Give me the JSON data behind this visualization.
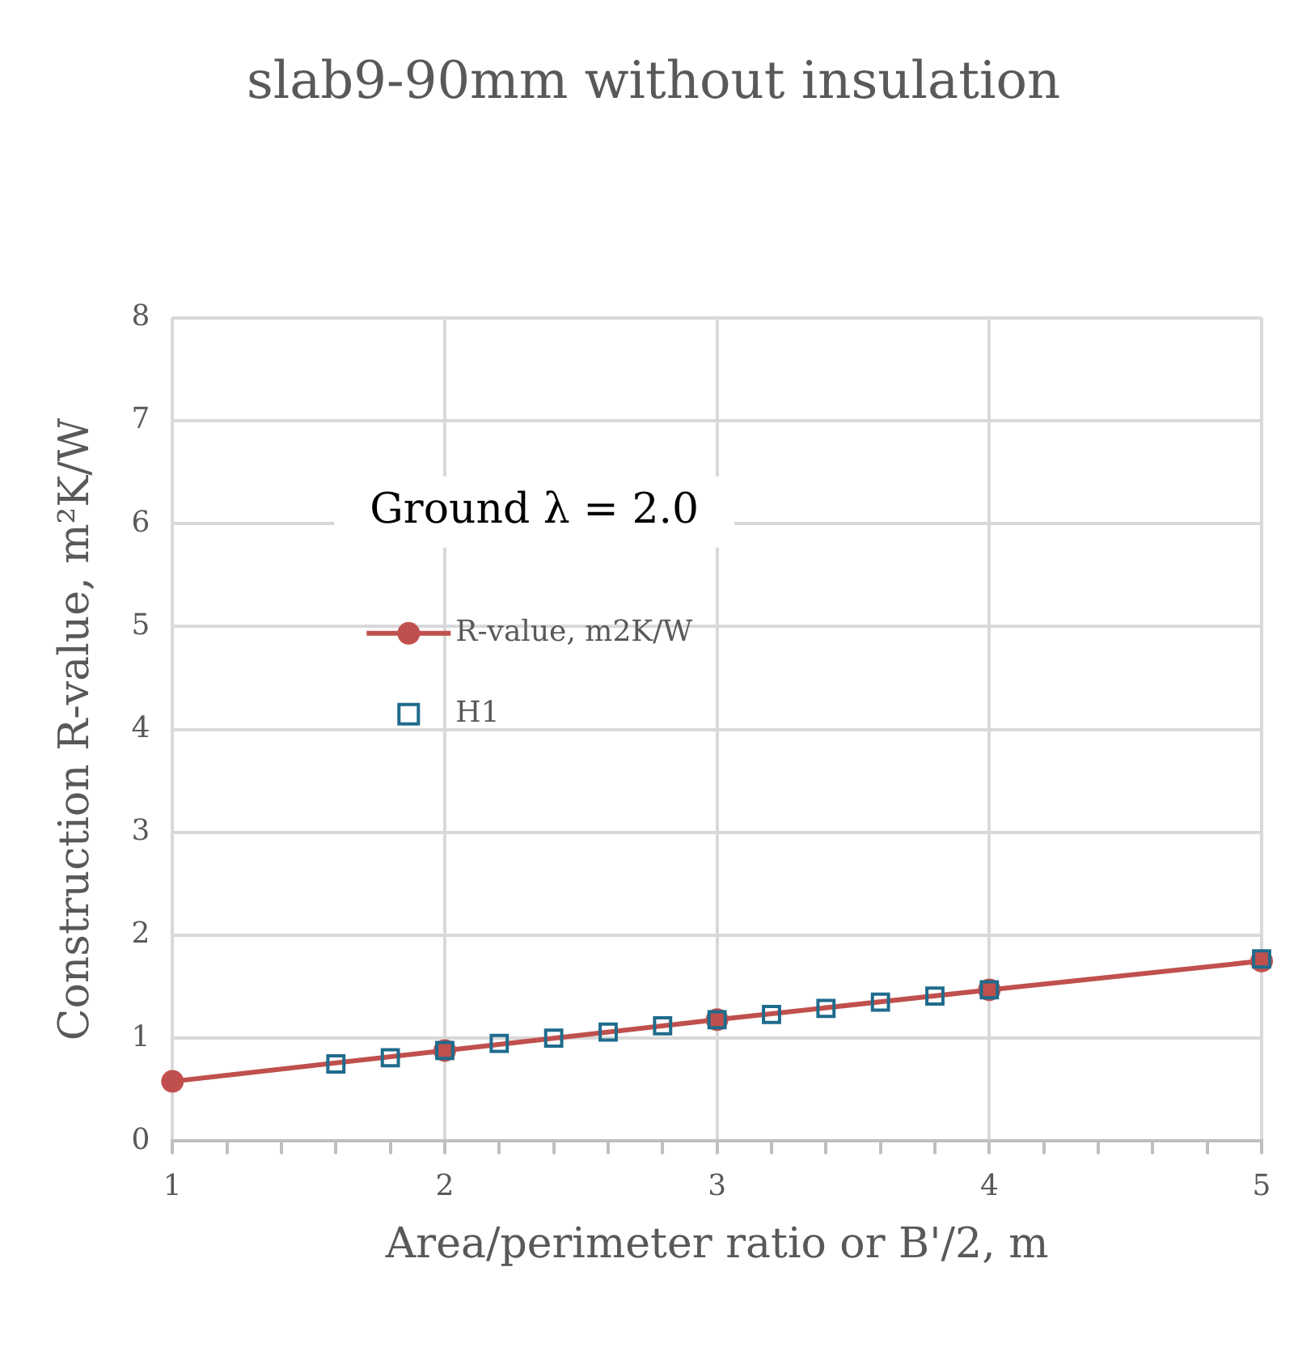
{
  "chart_data": {
    "type": "line",
    "title": "slab9-90mm without insulation",
    "xlabel": "Area/perimeter ratio or B'/2, m",
    "ylabel": "Construction R-value, m²K/W",
    "annotations": [
      "Ground λ = 2.0"
    ],
    "xlim": [
      1,
      5
    ],
    "xticks": [
      1,
      {
        "value": 1.2,
        "label": null
      },
      {
        "value": 1.4,
        "label": null
      },
      {
        "value": 1.6,
        "label": null
      },
      {
        "value": 1.8,
        "label": null
      },
      2,
      {
        "value": 2.2,
        "label": null
      },
      {
        "value": 2.4,
        "label": null
      },
      {
        "value": 2.6,
        "label": null
      },
      {
        "value": 2.8,
        "label": null
      },
      3,
      {
        "value": 3.2,
        "label": null
      },
      {
        "value": 3.4,
        "label": null
      },
      {
        "value": 3.6,
        "label": null
      },
      {
        "value": 3.8,
        "label": null
      },
      4,
      {
        "value": 4.2,
        "label": null
      },
      {
        "value": 4.4,
        "label": null
      },
      {
        "value": 4.6,
        "label": null
      },
      {
        "value": 4.8,
        "label": null
      },
      5
    ],
    "ylim": [
      0,
      8
    ],
    "yticks": [
      0,
      1,
      2,
      3,
      4,
      5,
      6,
      7,
      8
    ],
    "grid": true,
    "legend": "top left",
    "series": [
      {
        "name": "R-value, m2K/W",
        "type": "line",
        "color": "#c0504d",
        "marker": "circle",
        "line_style": "solid",
        "x": [
          1,
          2,
          3,
          4,
          5
        ],
        "values": [
          0.58,
          0.88,
          1.18,
          1.47,
          1.75
        ]
      },
      {
        "name": "H1",
        "type": "scatter",
        "color": "#1f6b8c",
        "marker": "square",
        "x": [
          1.6,
          1.8,
          2.0,
          2.2,
          2.4,
          2.6,
          2.8,
          3.0,
          3.2,
          3.4,
          3.6,
          3.8,
          4.0,
          5.0
        ],
        "values": [
          0.75,
          0.81,
          0.88,
          0.95,
          1.0,
          1.06,
          1.12,
          1.18,
          1.23,
          1.29,
          1.35,
          1.41,
          1.47,
          1.77
        ]
      }
    ]
  }
}
